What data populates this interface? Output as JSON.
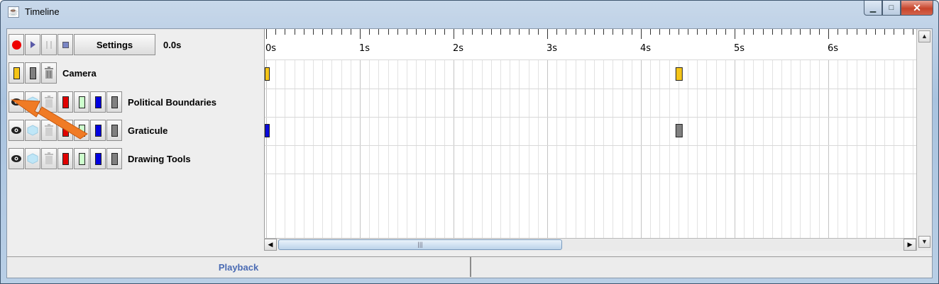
{
  "window": {
    "title": "Timeline",
    "icon": "java-cup-icon",
    "minimize": "minimize-icon",
    "maximize": "maximize-icon",
    "close": "close-icon"
  },
  "toolbar": {
    "settings_label": "Settings",
    "time_value": "0.0s",
    "icons": [
      "record-icon",
      "play-icon",
      "pause-icon",
      "stop-icon"
    ]
  },
  "camera": {
    "label": "Camera"
  },
  "layers": [
    {
      "label": "Political Boundaries"
    },
    {
      "label": "Graticule"
    },
    {
      "label": "Drawing Tools"
    }
  ],
  "timeline": {
    "ticks": [
      "0s",
      "1s",
      "2s",
      "3s",
      "4s",
      "5s",
      "6s"
    ],
    "keyframes": [
      {
        "row": "camera",
        "time": 0.0,
        "color": "#f5c518"
      },
      {
        "row": "camera",
        "time": 4.4,
        "color": "#f5c518"
      },
      {
        "row": "graticule",
        "time": 0.0,
        "color": "#0a0adc"
      },
      {
        "row": "graticule",
        "time": 4.4,
        "color": "#808080"
      }
    ]
  },
  "status": {
    "left_label": "Playback",
    "right_label": ""
  },
  "colors": {
    "red": "#e00000",
    "light_green": "#ccffcc",
    "blue": "#0000e0",
    "gray": "#808080",
    "yellow": "#f5c518",
    "annotation_arrow": "#f07b25"
  }
}
